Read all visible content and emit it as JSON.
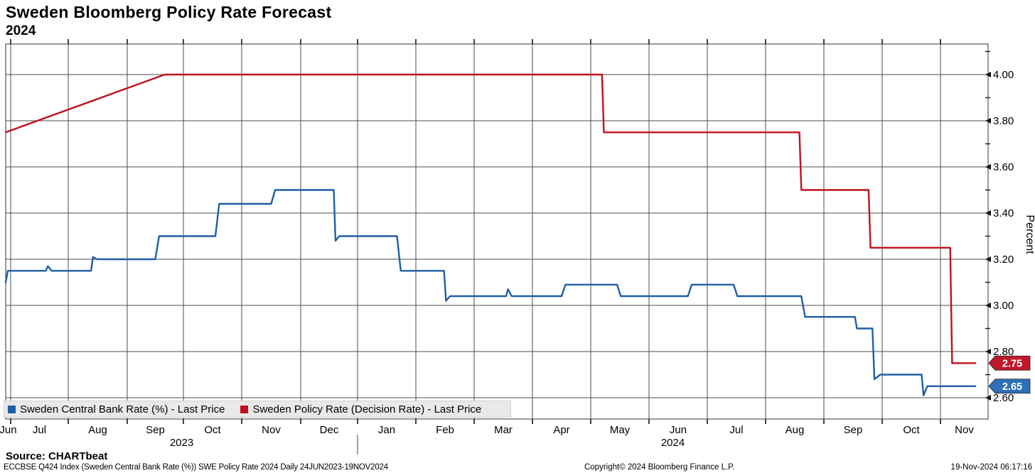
{
  "header": {
    "title": "Sweden Bloomberg Policy Rate Forecast",
    "subtitle": "2024"
  },
  "legend": [
    {
      "label": "Sweden Central Bank Rate (%) - Last Price",
      "color": "#1f5fa5"
    },
    {
      "label": "Sweden Policy Rate (Decision Rate) - Last Price",
      "color": "#bf111f"
    }
  ],
  "footer": {
    "source": "Source: CHARTbeat",
    "index_line": "ECCBSE Q424 Index (Sweden Central Bank Rate (%)) SWE Policy Rate 2024  Daily 24JUN2023-19NOV2024",
    "copyright": "Copyright© 2024 Bloomberg Finance L.P.",
    "timestamp": "19-Nov-2024 06:17:16"
  },
  "chart_data": {
    "type": "line",
    "title": "Sweden Bloomberg Policy Rate Forecast 2024",
    "ylabel": "Percent",
    "ylim": [
      2.51,
      4.13
    ],
    "x_range": "24JUN2023 - 19NOV2024",
    "grid": true,
    "legend_position": "bottom-left",
    "y_ticks": [
      {
        "v": 4.0,
        "label": "4.00"
      },
      {
        "v": 3.8,
        "label": "3.80"
      },
      {
        "v": 3.6,
        "label": "3.60"
      },
      {
        "v": 3.4,
        "label": "3.40"
      },
      {
        "v": 3.2,
        "label": "3.20"
      },
      {
        "v": 3.0,
        "label": "3.00"
      },
      {
        "v": 2.8,
        "label": "2.80"
      },
      {
        "v": 2.6,
        "label": "2.60"
      }
    ],
    "y_minor_ticks": [
      4.1,
      3.9,
      3.7,
      3.5,
      3.3,
      3.1,
      2.9,
      2.7
    ],
    "months": [
      {
        "m": "2023-06",
        "label": "Jun"
      },
      {
        "m": "2023-07",
        "label": "Jul"
      },
      {
        "m": "2023-08",
        "label": "Aug"
      },
      {
        "m": "2023-09",
        "label": "Sep"
      },
      {
        "m": "2023-10",
        "label": "Oct"
      },
      {
        "m": "2023-11",
        "label": "Nov"
      },
      {
        "m": "2023-12",
        "label": "Dec"
      },
      {
        "m": "2024-01",
        "label": "Jan"
      },
      {
        "m": "2024-02",
        "label": "Feb"
      },
      {
        "m": "2024-03",
        "label": "Mar"
      },
      {
        "m": "2024-04",
        "label": "Apr"
      },
      {
        "m": "2024-05",
        "label": "May"
      },
      {
        "m": "2024-06",
        "label": "Jun"
      },
      {
        "m": "2024-07",
        "label": "Jul"
      },
      {
        "m": "2024-08",
        "label": "Aug"
      },
      {
        "m": "2024-09",
        "label": "Sep"
      },
      {
        "m": "2024-10",
        "label": "Oct"
      },
      {
        "m": "2024-11",
        "label": "Nov"
      }
    ],
    "year_labels": [
      {
        "label": "2023",
        "from": "2023-06",
        "to": "2024-01"
      },
      {
        "label": "2024",
        "from": "2024-01",
        "to": "2024-12"
      }
    ],
    "series": [
      {
        "name": "Sweden Central Bank Rate (%) - Last Price",
        "color": "#1f5fa5",
        "points": [
          {
            "d": "2023-06-24",
            "v": 3.1
          },
          {
            "d": "2023-06-27",
            "v": 3.15
          },
          {
            "d": "2023-07-20",
            "v": 3.15
          },
          {
            "d": "2023-07-21",
            "v": 3.17
          },
          {
            "d": "2023-07-23",
            "v": 3.15
          },
          {
            "d": "2023-08-13",
            "v": 3.15
          },
          {
            "d": "2023-08-14",
            "v": 3.21
          },
          {
            "d": "2023-08-16",
            "v": 3.2
          },
          {
            "d": "2023-09-16",
            "v": 3.2
          },
          {
            "d": "2023-09-18",
            "v": 3.3
          },
          {
            "d": "2023-10-18",
            "v": 3.3
          },
          {
            "d": "2023-10-20",
            "v": 3.44
          },
          {
            "d": "2023-11-16",
            "v": 3.44
          },
          {
            "d": "2023-11-18",
            "v": 3.5
          },
          {
            "d": "2023-12-19",
            "v": 3.5
          },
          {
            "d": "2023-12-20",
            "v": 3.28
          },
          {
            "d": "2023-12-22",
            "v": 3.3
          },
          {
            "d": "2024-01-22",
            "v": 3.3
          },
          {
            "d": "2024-01-24",
            "v": 3.15
          },
          {
            "d": "2024-02-15",
            "v": 3.15
          },
          {
            "d": "2024-02-16",
            "v": 3.02
          },
          {
            "d": "2024-02-18",
            "v": 3.04
          },
          {
            "d": "2024-03-18",
            "v": 3.04
          },
          {
            "d": "2024-03-19",
            "v": 3.07
          },
          {
            "d": "2024-03-21",
            "v": 3.04
          },
          {
            "d": "2024-04-16",
            "v": 3.04
          },
          {
            "d": "2024-04-18",
            "v": 3.09
          },
          {
            "d": "2024-05-15",
            "v": 3.09
          },
          {
            "d": "2024-05-17",
            "v": 3.04
          },
          {
            "d": "2024-06-21",
            "v": 3.04
          },
          {
            "d": "2024-06-23",
            "v": 3.09
          },
          {
            "d": "2024-07-15",
            "v": 3.09
          },
          {
            "d": "2024-07-17",
            "v": 3.04
          },
          {
            "d": "2024-08-20",
            "v": 3.04
          },
          {
            "d": "2024-08-22",
            "v": 2.95
          },
          {
            "d": "2024-09-17",
            "v": 2.95
          },
          {
            "d": "2024-09-18",
            "v": 2.9
          },
          {
            "d": "2024-09-26",
            "v": 2.9
          },
          {
            "d": "2024-09-27",
            "v": 2.68
          },
          {
            "d": "2024-09-30",
            "v": 2.7
          },
          {
            "d": "2024-10-22",
            "v": 2.7
          },
          {
            "d": "2024-10-23",
            "v": 2.61
          },
          {
            "d": "2024-10-25",
            "v": 2.65
          },
          {
            "d": "2024-11-19",
            "v": 2.65
          }
        ]
      },
      {
        "name": "Sweden Policy Rate (Decision Rate) - Last Price",
        "color": "#bf111f",
        "points": [
          {
            "d": "2023-06-24",
            "v": 3.75
          },
          {
            "d": "2023-09-21",
            "v": 4.0
          },
          {
            "d": "2024-05-07",
            "v": 4.0
          },
          {
            "d": "2024-05-08",
            "v": 3.75
          },
          {
            "d": "2024-08-19",
            "v": 3.75
          },
          {
            "d": "2024-08-20",
            "v": 3.5
          },
          {
            "d": "2024-09-24",
            "v": 3.5
          },
          {
            "d": "2024-09-25",
            "v": 3.25
          },
          {
            "d": "2024-11-06",
            "v": 3.25
          },
          {
            "d": "2024-11-07",
            "v": 2.75
          },
          {
            "d": "2024-11-19",
            "v": 2.75
          }
        ]
      }
    ],
    "last_prices": [
      {
        "value": "2.75",
        "v": 2.75,
        "color": "#c0182b"
      },
      {
        "value": "2.65",
        "v": 2.65,
        "color": "#2e6fb8"
      }
    ]
  }
}
